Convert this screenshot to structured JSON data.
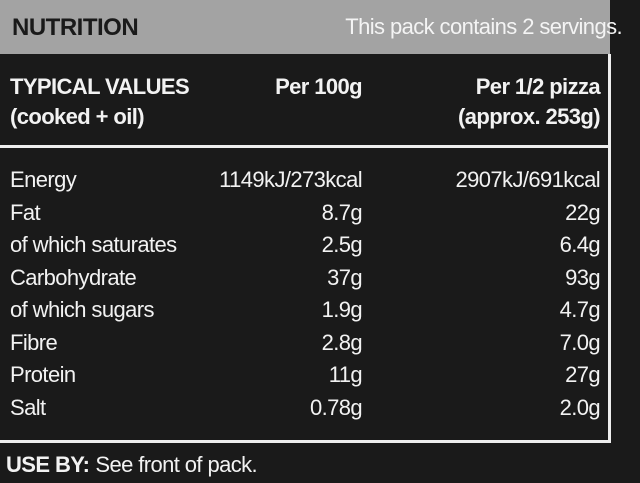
{
  "header": {
    "title": "NUTRITION",
    "servings": "This pack contains 2 servings."
  },
  "table": {
    "columns": [
      [
        "TYPICAL VALUES",
        "(cooked + oil)"
      ],
      [
        "Per 100g"
      ],
      [
        "Per 1/2 pizza",
        "(approx. 253g)"
      ]
    ],
    "rows": [
      [
        "Energy",
        "1149kJ/273kcal",
        "2907kJ/691kcal"
      ],
      [
        "Fat",
        "8.7g",
        "22g"
      ],
      [
        "of which saturates",
        "2.5g",
        "6.4g"
      ],
      [
        "Carbohydrate",
        "37g",
        "93g"
      ],
      [
        "of which sugars",
        "1.9g",
        "4.7g"
      ],
      [
        "Fibre",
        "2.8g",
        "7.0g"
      ],
      [
        "Protein",
        "11g",
        "27g"
      ],
      [
        "Salt",
        "0.78g",
        "2.0g"
      ]
    ]
  },
  "footer": {
    "label": "USE BY:",
    "text": "See front of pack."
  }
}
